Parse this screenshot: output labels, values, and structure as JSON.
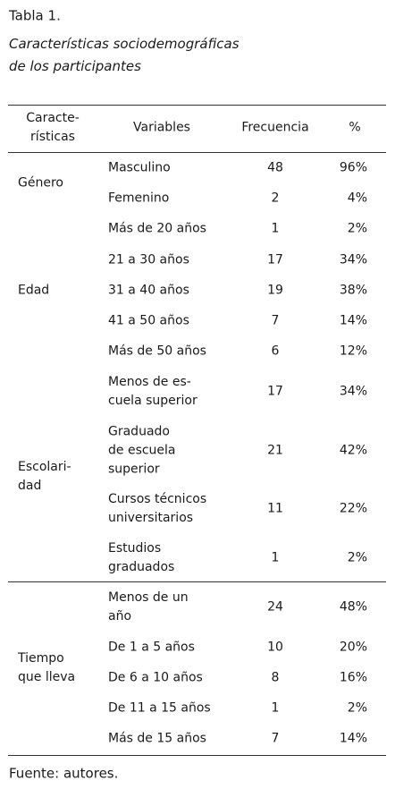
{
  "header": {
    "title": "Tabla 1.",
    "subtitle": "Características sociodemográficas\nde los participantes"
  },
  "table": {
    "columns": [
      "Caracte-\nrísticas",
      "Variables",
      "Frecuencia",
      "%"
    ],
    "groups": [
      {
        "label": "Género",
        "rows": [
          [
            "Masculino",
            48,
            "96%"
          ],
          [
            "Femenino",
            2,
            "4%"
          ]
        ]
      },
      {
        "label": "Edad",
        "rows": [
          [
            "Más de 20 años",
            1,
            "2%"
          ],
          [
            "21 a 30 años",
            17,
            "34%"
          ],
          [
            "31 a 40 años",
            19,
            "38%"
          ],
          [
            "41 a 50 años",
            7,
            "14%"
          ],
          [
            "Más de 50 años",
            6,
            "12%"
          ]
        ]
      },
      {
        "label": "Escolari-\ndad",
        "rows": [
          [
            "Menos de es-\ncuela superior",
            17,
            "34%"
          ],
          [
            "Graduado\nde escuela\nsuperior",
            21,
            "42%"
          ],
          [
            "Cursos técnicos\nuniversitarios",
            11,
            "22%"
          ],
          [
            "Estudios\ngraduados",
            1,
            "2%"
          ]
        ]
      },
      {
        "label": "Tiempo\nque lleva",
        "rows": [
          [
            "Menos de un\naño",
            24,
            "48%"
          ],
          [
            "De 1 a 5 años",
            10,
            "20%"
          ],
          [
            "De 6 a 10 años",
            8,
            "16%"
          ],
          [
            "De 11 a 15 años",
            1,
            "2%"
          ],
          [
            "Más de 15 años",
            7,
            "14%"
          ]
        ]
      }
    ]
  },
  "footer": {
    "source": "Fuente: autores."
  }
}
